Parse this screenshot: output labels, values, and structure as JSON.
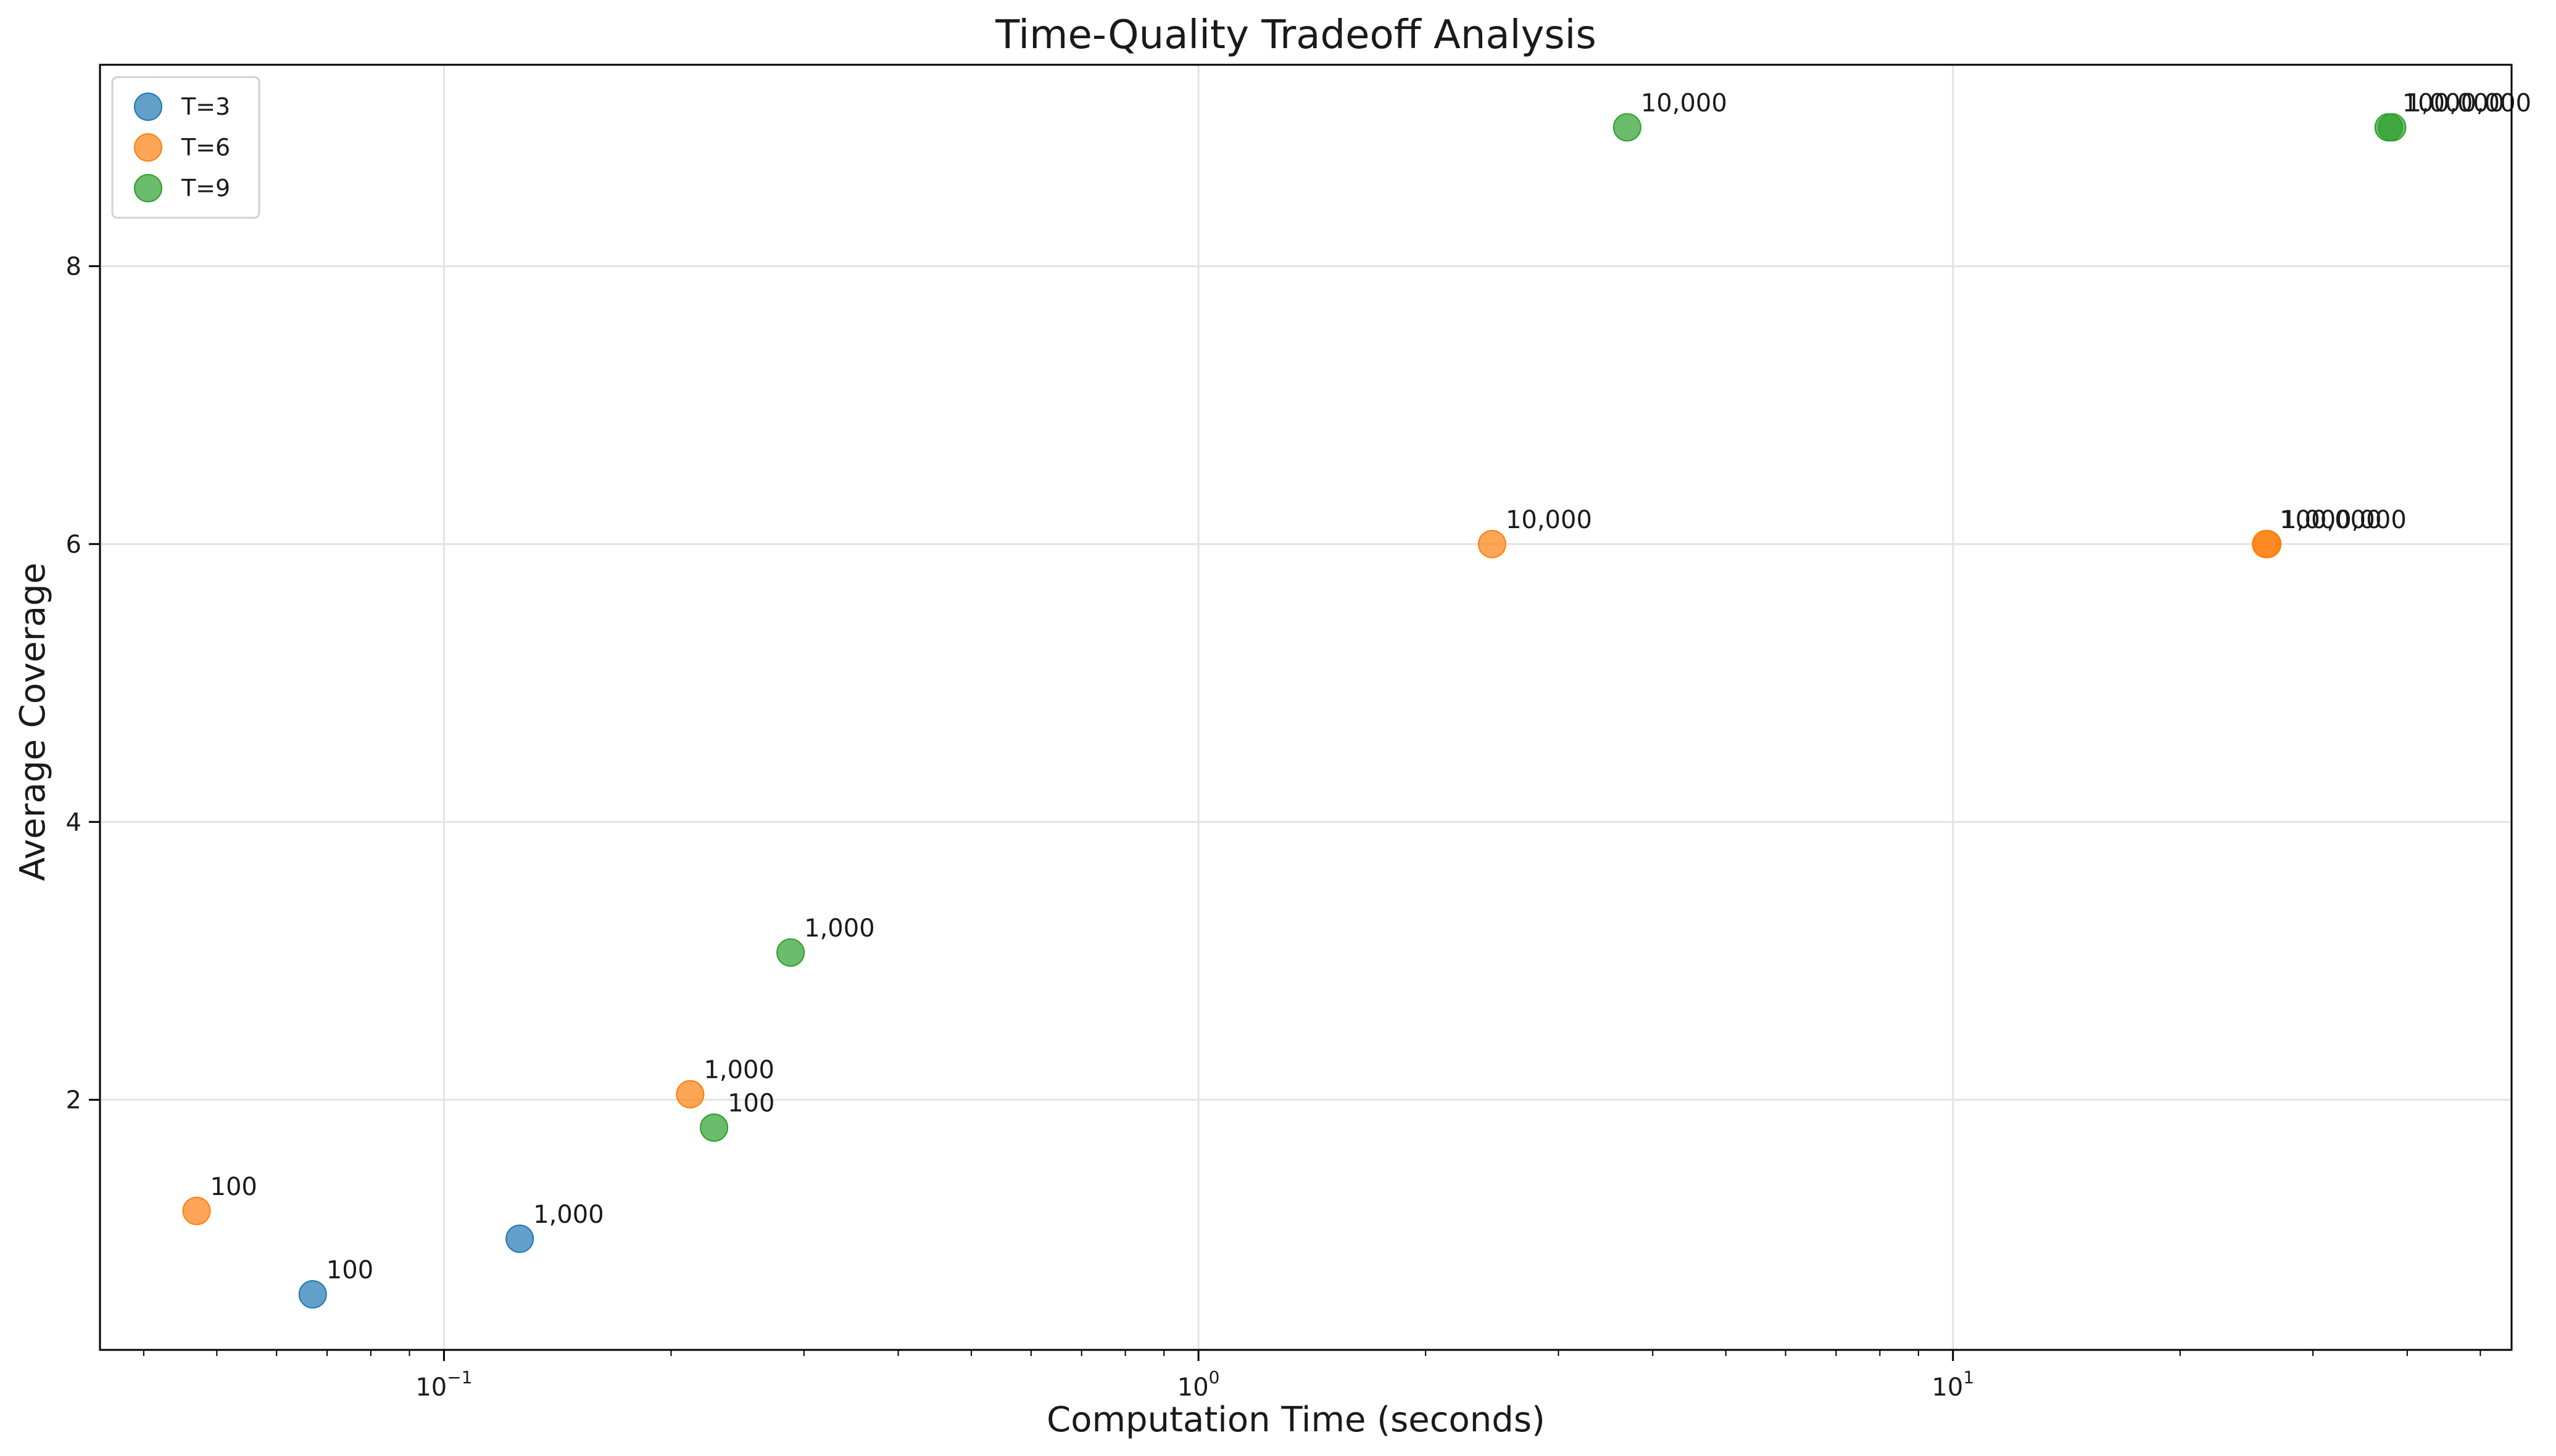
{
  "chart_data": {
    "type": "scatter",
    "title": "Time-Quality Tradeoff Analysis",
    "xlabel": "Computation Time (seconds)",
    "ylabel": "Average Coverage",
    "xscale": "log",
    "xlim": [
      0.035,
      55
    ],
    "ylim": [
      0.2,
      9.45
    ],
    "x_ticks": [
      {
        "value": 0.1,
        "base": "10",
        "exp": "−1"
      },
      {
        "value": 1,
        "base": "10",
        "exp": "0"
      },
      {
        "value": 10,
        "base": "10",
        "exp": "1"
      }
    ],
    "y_ticks": [
      2,
      4,
      6,
      8
    ],
    "grid": true,
    "legend_position": "top-left",
    "series": [
      {
        "name": "T=3",
        "color": "#1f77b4",
        "points": [
          {
            "x": 0.067,
            "y": 0.6,
            "label": "100"
          },
          {
            "x": 0.126,
            "y": 1.0,
            "label": "1,000"
          }
        ]
      },
      {
        "name": "T=6",
        "color": "#ff7f0e",
        "points": [
          {
            "x": 0.047,
            "y": 1.2,
            "label": "100"
          },
          {
            "x": 0.212,
            "y": 2.04,
            "label": "1,000"
          },
          {
            "x": 2.45,
            "y": 6.0,
            "label": "10,000"
          },
          {
            "x": 26.0,
            "y": 6.0,
            "label": "100,000"
          },
          {
            "x": 26.1,
            "y": 6.0,
            "label": "1,000,000"
          }
        ]
      },
      {
        "name": "T=9",
        "color": "#2ca02c",
        "points": [
          {
            "x": 0.228,
            "y": 1.8,
            "label": "100"
          },
          {
            "x": 0.288,
            "y": 3.06,
            "label": "1,000"
          },
          {
            "x": 3.7,
            "y": 9.0,
            "label": "10,000"
          },
          {
            "x": 37.8,
            "y": 9.0,
            "label": "100,000"
          },
          {
            "x": 38.2,
            "y": 9.0,
            "label": "1,000,000"
          }
        ]
      }
    ]
  }
}
